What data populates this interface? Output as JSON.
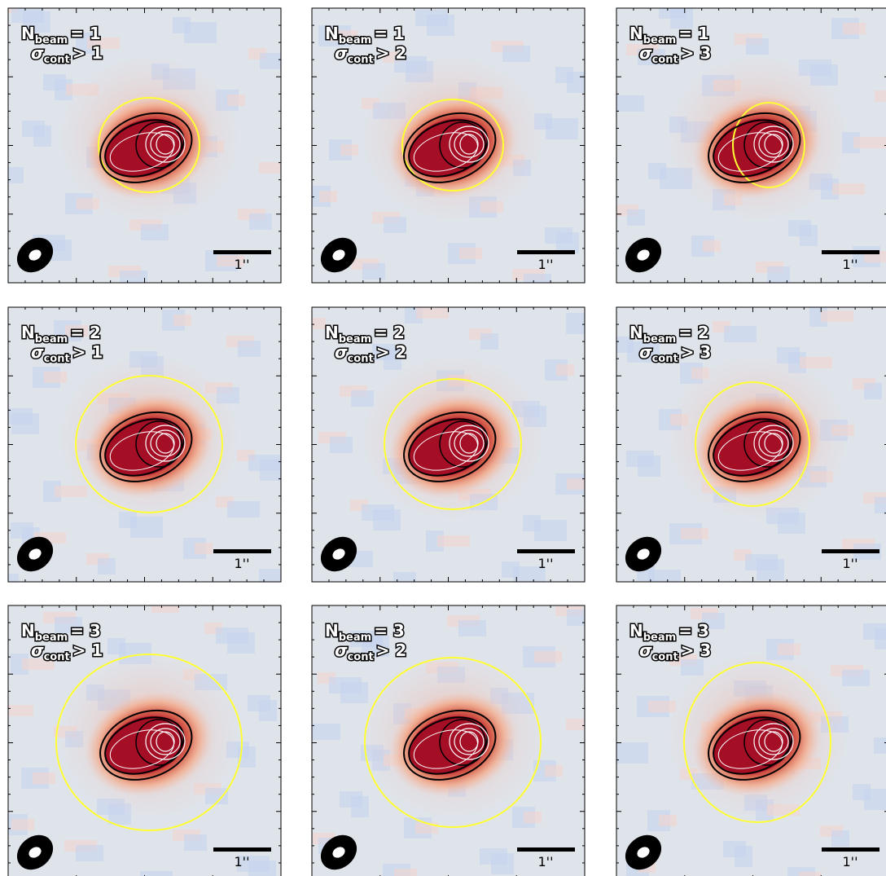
{
  "panels": [
    {
      "line1": {
        "symbol": "N",
        "sub": "beam",
        "relation": "= 1"
      },
      "line2": {
        "symbol": "σ",
        "sub": "cont",
        "relation": "> 1"
      },
      "scale_bar": "1''"
    },
    {
      "line1": {
        "symbol": "N",
        "sub": "beam",
        "relation": "= 1"
      },
      "line2": {
        "symbol": "σ",
        "sub": "cont",
        "relation": "> 2"
      },
      "scale_bar": "1''"
    },
    {
      "line1": {
        "symbol": "N",
        "sub": "beam",
        "relation": "= 1"
      },
      "line2": {
        "symbol": "σ",
        "sub": "cont",
        "relation": "> 3"
      },
      "scale_bar": "1''"
    },
    {
      "line1": {
        "symbol": "N",
        "sub": "beam",
        "relation": "= 2"
      },
      "line2": {
        "symbol": "σ",
        "sub": "cont",
        "relation": "> 1"
      },
      "scale_bar": "1''"
    },
    {
      "line1": {
        "symbol": "N",
        "sub": "beam",
        "relation": "= 2"
      },
      "line2": {
        "symbol": "σ",
        "sub": "cont",
        "relation": "> 2"
      },
      "scale_bar": "1''"
    },
    {
      "line1": {
        "symbol": "N",
        "sub": "beam",
        "relation": "= 2"
      },
      "line2": {
        "symbol": "σ",
        "sub": "cont",
        "relation": "> 3"
      },
      "scale_bar": "1''"
    },
    {
      "line1": {
        "symbol": "N",
        "sub": "beam",
        "relation": "= 3"
      },
      "line2": {
        "symbol": "σ",
        "sub": "cont",
        "relation": "> 1"
      },
      "scale_bar": "1''"
    },
    {
      "line1": {
        "symbol": "N",
        "sub": "beam",
        "relation": "= 3"
      },
      "line2": {
        "symbol": "σ",
        "sub": "cont",
        "relation": "> 2"
      },
      "scale_bar": "1''"
    },
    {
      "line1": {
        "symbol": "N",
        "sub": "beam",
        "relation": "= 3"
      },
      "line2": {
        "symbol": "σ",
        "sub": "cont",
        "relation": "> 3"
      },
      "scale_bar": "1''"
    }
  ]
}
